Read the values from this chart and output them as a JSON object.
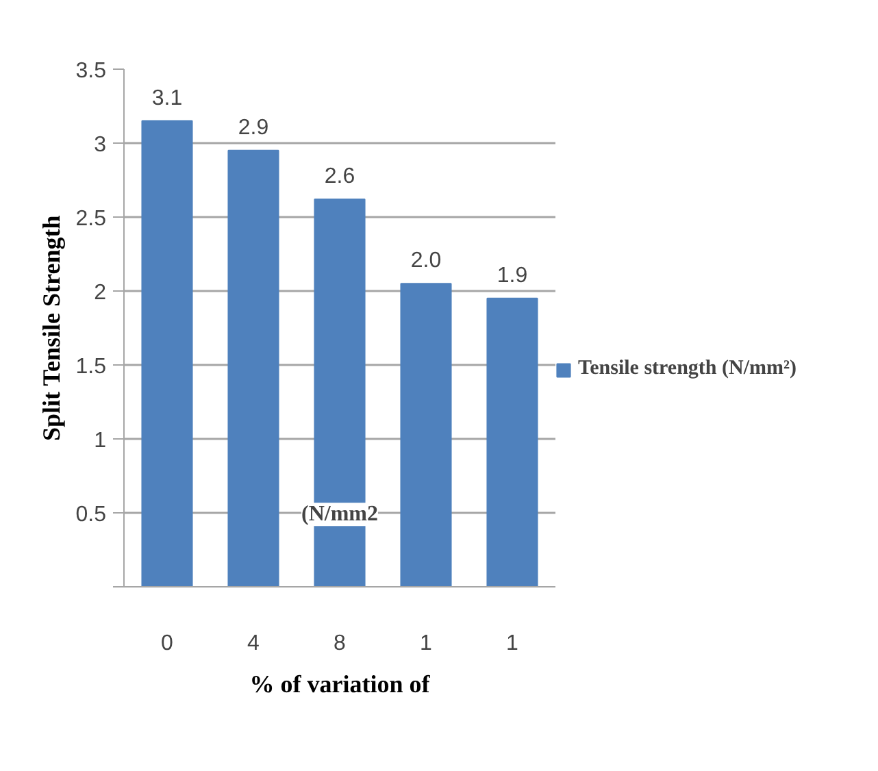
{
  "chart_data": {
    "type": "bar",
    "categories": [
      "0",
      "4",
      "8",
      "1",
      "1"
    ],
    "series": [
      {
        "name": "Tensile strength (N/mm²)",
        "color": "#4f81bd",
        "values": [
          3.15,
          2.95,
          2.62,
          2.05,
          1.95
        ],
        "value_labels": [
          "3.1",
          "2.9",
          "2.6",
          "2.0",
          "1.9"
        ]
      }
    ],
    "xlabel": "% of variation of",
    "ylabel": "Split Tensile Strength",
    "annotations": [
      "(N/mm2"
    ],
    "ylim": [
      0,
      3.5
    ],
    "yticks": [
      {
        "value": 0,
        "label": null
      },
      0.5,
      1,
      1.5,
      2,
      2.5,
      3,
      3.5
    ],
    "grid": "y",
    "legend": "right"
  }
}
